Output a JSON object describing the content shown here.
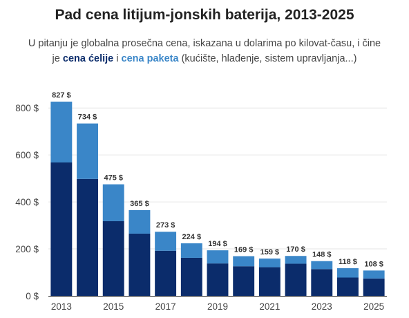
{
  "title": "Pad cena litijum-jonskih baterija, 2013-2025",
  "subtitle": {
    "line1": "U pitanju je globalna prosečna cena, iskazana u dolarima po kilovat-času, i čine",
    "line2_prefix": "je ",
    "cell_label": "cena ćelije",
    "joiner": " i ",
    "pack_label": "cena paketa",
    "line2_suffix": " (kućište, hlađenje, sistem upravljanja...)"
  },
  "colors": {
    "cell": "#0b2c6b",
    "pack": "#3a86c8",
    "grid": "#e6e6e6"
  },
  "chart_data": {
    "type": "bar",
    "stacked": true,
    "categories": [
      "2013",
      "2014",
      "2015",
      "2016",
      "2017",
      "2018",
      "2019",
      "2020",
      "2021",
      "2022",
      "2023",
      "2024",
      "2025"
    ],
    "x_tick_labels": [
      "2013",
      "2015",
      "2017",
      "2019",
      "2021",
      "2023",
      "2025"
    ],
    "series": [
      {
        "name": "cena ćelije",
        "values": [
          568,
          498,
          318,
          265,
          192,
          162,
          138,
          126,
          122,
          137,
          114,
          78,
          74
        ]
      },
      {
        "name": "cena paketa",
        "values": [
          259,
          236,
          157,
          100,
          81,
          62,
          56,
          43,
          37,
          33,
          34,
          40,
          34
        ]
      }
    ],
    "totals": [
      827,
      734,
      475,
      365,
      273,
      224,
      194,
      169,
      159,
      170,
      148,
      118,
      108
    ],
    "total_labels": [
      "827 $",
      "734 $",
      "475 $",
      "365 $",
      "273 $",
      "224 $",
      "194 $",
      "169 $",
      "159 $",
      "170 $",
      "148 $",
      "118 $",
      "108 $"
    ],
    "y_ticks": [
      0,
      200,
      400,
      600,
      800
    ],
    "y_tick_labels": [
      "0 $",
      "200 $",
      "400 $",
      "600 $",
      "800 $"
    ],
    "ylim": [
      0,
      830
    ],
    "grid": true
  }
}
